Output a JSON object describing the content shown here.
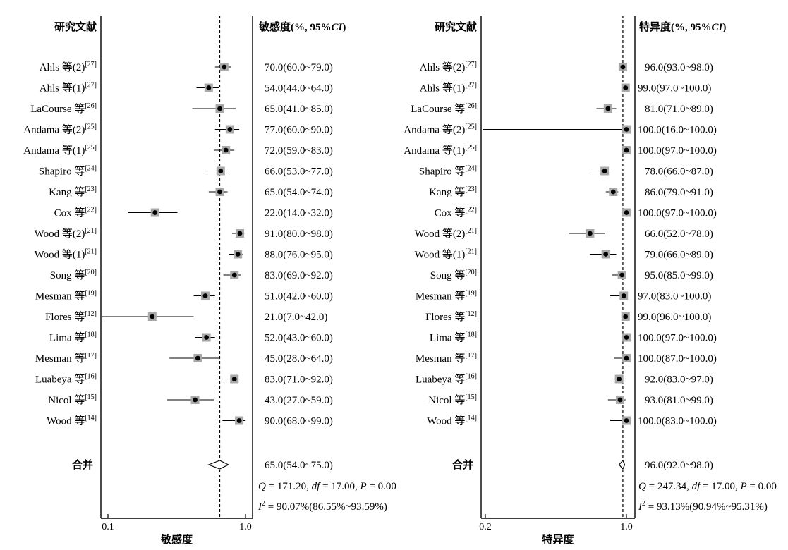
{
  "chart_data": [
    {
      "type": "forest",
      "header_label": "研究文献",
      "header_value": "敏感度(%, 95%CI)",
      "xlabel": "敏感度",
      "xscale": "log",
      "xlim": [
        0.09,
        1.05
      ],
      "xticks": [
        "0.1",
        "1.0"
      ],
      "xtick_values": [
        0.1,
        1.0
      ],
      "reference_line": 0.65,
      "studies": [
        {
          "name": "Ahls 等(2)",
          "ref": "[27]",
          "value": 70.0,
          "lower": 60.0,
          "upper": 79.0,
          "text": "70.0(60.0~79.0)"
        },
        {
          "name": "Ahls 等(1)",
          "ref": "[27]",
          "value": 54.0,
          "lower": 44.0,
          "upper": 64.0,
          "text": "54.0(44.0~64.0)"
        },
        {
          "name": "LaCourse 等",
          "ref": "[26]",
          "value": 65.0,
          "lower": 41.0,
          "upper": 85.0,
          "text": "65.0(41.0~85.0)"
        },
        {
          "name": "Andama 等(2)",
          "ref": "[25]",
          "value": 77.0,
          "lower": 60.0,
          "upper": 90.0,
          "text": "77.0(60.0~90.0)"
        },
        {
          "name": "Andama 等(1)",
          "ref": "[25]",
          "value": 72.0,
          "lower": 59.0,
          "upper": 83.0,
          "text": "72.0(59.0~83.0)"
        },
        {
          "name": "Shapiro 等",
          "ref": "[24]",
          "value": 66.0,
          "lower": 53.0,
          "upper": 77.0,
          "text": "66.0(53.0~77.0)"
        },
        {
          "name": "Kang 等",
          "ref": "[23]",
          "value": 65.0,
          "lower": 54.0,
          "upper": 74.0,
          "text": "65.0(54.0~74.0)"
        },
        {
          "name": "Cox 等",
          "ref": "[22]",
          "value": 22.0,
          "lower": 14.0,
          "upper": 32.0,
          "text": "22.0(14.0~32.0)"
        },
        {
          "name": "Wood 等(2)",
          "ref": "[21]",
          "value": 91.0,
          "lower": 80.0,
          "upper": 98.0,
          "text": "91.0(80.0~98.0)"
        },
        {
          "name": "Wood 等(1)",
          "ref": "[21]",
          "value": 88.0,
          "lower": 76.0,
          "upper": 95.0,
          "text": "88.0(76.0~95.0)"
        },
        {
          "name": "Song 等",
          "ref": "[20]",
          "value": 83.0,
          "lower": 69.0,
          "upper": 92.0,
          "text": "83.0(69.0~92.0)"
        },
        {
          "name": "Mesman 等",
          "ref": "[19]",
          "value": 51.0,
          "lower": 42.0,
          "upper": 60.0,
          "text": "51.0(42.0~60.0)"
        },
        {
          "name": "Flores 等",
          "ref": "[12]",
          "value": 21.0,
          "lower": 7.0,
          "upper": 42.0,
          "text": "21.0(7.0~42.0)"
        },
        {
          "name": "Lima 等",
          "ref": "[18]",
          "value": 52.0,
          "lower": 43.0,
          "upper": 60.0,
          "text": "52.0(43.0~60.0)"
        },
        {
          "name": "Mesman 等",
          "ref": "[17]",
          "value": 45.0,
          "lower": 28.0,
          "upper": 64.0,
          "text": "45.0(28.0~64.0)"
        },
        {
          "name": "Luabeya 等",
          "ref": "[16]",
          "value": 83.0,
          "lower": 71.0,
          "upper": 92.0,
          "text": "83.0(71.0~92.0)"
        },
        {
          "name": "Nicol 等",
          "ref": "[15]",
          "value": 43.0,
          "lower": 27.0,
          "upper": 59.0,
          "text": "43.0(27.0~59.0)"
        },
        {
          "name": "Wood 等",
          "ref": "[14]",
          "value": 90.0,
          "lower": 68.0,
          "upper": 99.0,
          "text": "90.0(68.0~99.0)"
        }
      ],
      "pooled": {
        "label": "合并",
        "value": 65.0,
        "lower": 54.0,
        "upper": 75.0,
        "text": "65.0(54.0~75.0)"
      },
      "stats": {
        "Q": "171.20",
        "df": "17.00",
        "P": "0.00",
        "I2": "90.07%",
        "I2_ci": "(86.55%~93.59%)"
      }
    },
    {
      "type": "forest",
      "header_label": "研究文献",
      "header_value": "特异度(%, 95%CI)",
      "xlabel": "特异度",
      "xscale": "log",
      "xlim": [
        0.19,
        1.035
      ],
      "xticks": [
        "0.2",
        "1.0"
      ],
      "xtick_values": [
        0.2,
        1.0
      ],
      "reference_line": 0.96,
      "studies": [
        {
          "name": "Ahls 等(2)",
          "ref": "[27]",
          "value": 96.0,
          "lower": 93.0,
          "upper": 98.0,
          "text": "96.0(93.0~98.0)"
        },
        {
          "name": "Ahls 等(1)",
          "ref": "[27]",
          "value": 99.0,
          "lower": 97.0,
          "upper": 100.0,
          "text": "99.0(97.0~100.0)"
        },
        {
          "name": "LaCourse 等",
          "ref": "[26]",
          "value": 81.0,
          "lower": 71.0,
          "upper": 89.0,
          "text": "81.0(71.0~89.0)"
        },
        {
          "name": "Andama 等(2)",
          "ref": "[25]",
          "value": 100.0,
          "lower": 16.0,
          "upper": 100.0,
          "text": "100.0(16.0~100.0)"
        },
        {
          "name": "Andama 等(1)",
          "ref": "[25]",
          "value": 100.0,
          "lower": 97.0,
          "upper": 100.0,
          "text": "100.0(97.0~100.0)"
        },
        {
          "name": "Shapiro 等",
          "ref": "[24]",
          "value": 78.0,
          "lower": 66.0,
          "upper": 87.0,
          "text": "78.0(66.0~87.0)"
        },
        {
          "name": "Kang 等",
          "ref": "[23]",
          "value": 86.0,
          "lower": 79.0,
          "upper": 91.0,
          "text": "86.0(79.0~91.0)"
        },
        {
          "name": "Cox 等",
          "ref": "[22]",
          "value": 100.0,
          "lower": 97.0,
          "upper": 100.0,
          "text": "100.0(97.0~100.0)"
        },
        {
          "name": "Wood 等(2)",
          "ref": "[21]",
          "value": 66.0,
          "lower": 52.0,
          "upper": 78.0,
          "text": "66.0(52.0~78.0)"
        },
        {
          "name": "Wood 等(1)",
          "ref": "[21]",
          "value": 79.0,
          "lower": 66.0,
          "upper": 89.0,
          "text": "79.0(66.0~89.0)"
        },
        {
          "name": "Song 等",
          "ref": "[20]",
          "value": 95.0,
          "lower": 85.0,
          "upper": 99.0,
          "text": "95.0(85.0~99.0)"
        },
        {
          "name": "Mesman 等",
          "ref": "[19]",
          "value": 97.0,
          "lower": 83.0,
          "upper": 100.0,
          "text": "97.0(83.0~100.0)"
        },
        {
          "name": "Flores 等",
          "ref": "[12]",
          "value": 99.0,
          "lower": 96.0,
          "upper": 100.0,
          "text": "99.0(96.0~100.0)"
        },
        {
          "name": "Lima 等",
          "ref": "[18]",
          "value": 100.0,
          "lower": 97.0,
          "upper": 100.0,
          "text": "100.0(97.0~100.0)"
        },
        {
          "name": "Mesman 等",
          "ref": "[17]",
          "value": 100.0,
          "lower": 87.0,
          "upper": 100.0,
          "text": "100.0(87.0~100.0)"
        },
        {
          "name": "Luabeya 等",
          "ref": "[16]",
          "value": 92.0,
          "lower": 83.0,
          "upper": 97.0,
          "text": "92.0(83.0~97.0)"
        },
        {
          "name": "Nicol 等",
          "ref": "[15]",
          "value": 93.0,
          "lower": 81.0,
          "upper": 99.0,
          "text": "93.0(81.0~99.0)"
        },
        {
          "name": "Wood 等",
          "ref": "[14]",
          "value": 100.0,
          "lower": 83.0,
          "upper": 100.0,
          "text": "100.0(83.0~100.0)"
        }
      ],
      "pooled": {
        "label": "合并",
        "value": 96.0,
        "lower": 92.0,
        "upper": 98.0,
        "text": "96.0(92.0~98.0)"
      },
      "stats": {
        "Q": "247.34",
        "df": "17.00",
        "P": "0.00",
        "I2": "93.13%",
        "I2_ci": "(90.94%~95.31%)"
      }
    }
  ]
}
